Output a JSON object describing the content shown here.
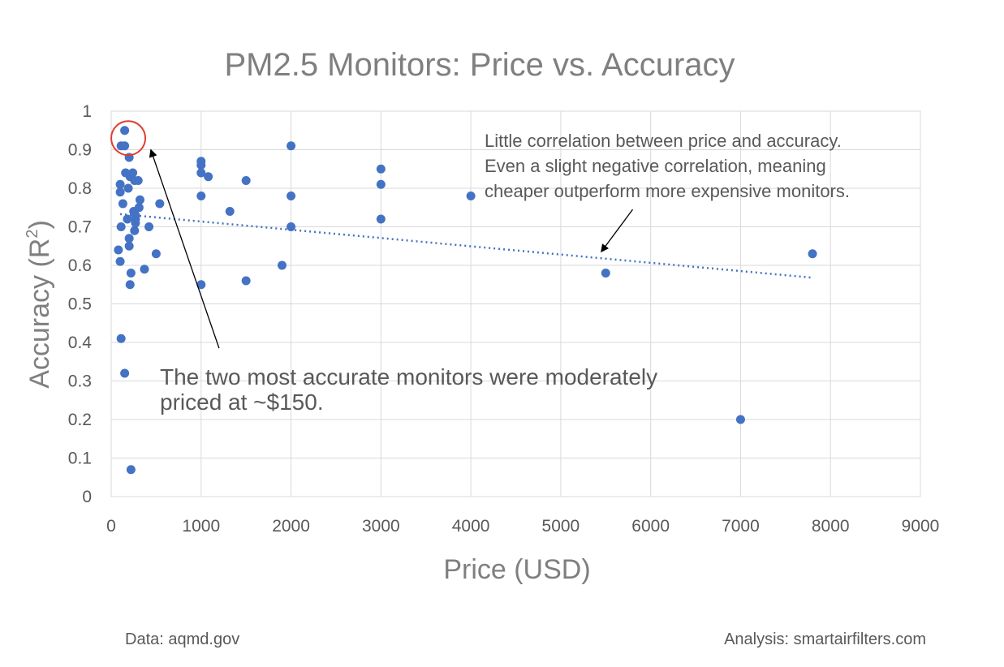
{
  "chart_data": {
    "type": "scatter",
    "title": "PM2.5 Monitors: Price vs. Accuracy",
    "xlabel": "Price (USD)",
    "ylabel_main": "Accuracy (R",
    "ylabel_sup": "2",
    "ylabel_close": ")",
    "xlim": [
      0,
      9000
    ],
    "ylim": [
      0,
      1
    ],
    "xticks": [
      "0",
      "1000",
      "2000",
      "3000",
      "4000",
      "5000",
      "6000",
      "7000",
      "8000",
      "9000"
    ],
    "yticks": [
      "0",
      "0.1",
      "0.2",
      "0.3",
      "0.4",
      "0.5",
      "0.6",
      "0.7",
      "0.8",
      "0.9",
      "1"
    ],
    "grid": true,
    "marker_color": "#4472c4",
    "highlight_color": "#e03c31",
    "points": [
      {
        "x": 150,
        "y": 0.95
      },
      {
        "x": 110,
        "y": 0.91
      },
      {
        "x": 150,
        "y": 0.91
      },
      {
        "x": 200,
        "y": 0.88
      },
      {
        "x": 100,
        "y": 0.81
      },
      {
        "x": 100,
        "y": 0.79
      },
      {
        "x": 160,
        "y": 0.84
      },
      {
        "x": 210,
        "y": 0.83
      },
      {
        "x": 240,
        "y": 0.84
      },
      {
        "x": 260,
        "y": 0.82
      },
      {
        "x": 300,
        "y": 0.82
      },
      {
        "x": 190,
        "y": 0.8
      },
      {
        "x": 320,
        "y": 0.77
      },
      {
        "x": 130,
        "y": 0.76
      },
      {
        "x": 250,
        "y": 0.74
      },
      {
        "x": 310,
        "y": 0.75
      },
      {
        "x": 270,
        "y": 0.73
      },
      {
        "x": 270,
        "y": 0.72
      },
      {
        "x": 270,
        "y": 0.71
      },
      {
        "x": 180,
        "y": 0.72
      },
      {
        "x": 110,
        "y": 0.7
      },
      {
        "x": 420,
        "y": 0.7
      },
      {
        "x": 260,
        "y": 0.69
      },
      {
        "x": 200,
        "y": 0.67
      },
      {
        "x": 200,
        "y": 0.65
      },
      {
        "x": 80,
        "y": 0.64
      },
      {
        "x": 500,
        "y": 0.63
      },
      {
        "x": 100,
        "y": 0.61
      },
      {
        "x": 370,
        "y": 0.59
      },
      {
        "x": 220,
        "y": 0.58
      },
      {
        "x": 210,
        "y": 0.55
      },
      {
        "x": 110,
        "y": 0.41
      },
      {
        "x": 150,
        "y": 0.32
      },
      {
        "x": 220,
        "y": 0.07
      },
      {
        "x": 540,
        "y": 0.76
      },
      {
        "x": 1000,
        "y": 0.87
      },
      {
        "x": 1000,
        "y": 0.86
      },
      {
        "x": 1000,
        "y": 0.84
      },
      {
        "x": 1080,
        "y": 0.83
      },
      {
        "x": 1000,
        "y": 0.78
      },
      {
        "x": 1000,
        "y": 0.55
      },
      {
        "x": 1320,
        "y": 0.74
      },
      {
        "x": 1500,
        "y": 0.82
      },
      {
        "x": 1500,
        "y": 0.56
      },
      {
        "x": 1900,
        "y": 0.6
      },
      {
        "x": 2000,
        "y": 0.91
      },
      {
        "x": 2000,
        "y": 0.78
      },
      {
        "x": 2000,
        "y": 0.7
      },
      {
        "x": 3000,
        "y": 0.85
      },
      {
        "x": 3000,
        "y": 0.81
      },
      {
        "x": 3000,
        "y": 0.72
      },
      {
        "x": 4000,
        "y": 0.78
      },
      {
        "x": 5500,
        "y": 0.58
      },
      {
        "x": 7000,
        "y": 0.2
      },
      {
        "x": 7800,
        "y": 0.63
      }
    ],
    "trendline": {
      "x0": 100,
      "y0": 0.733,
      "x1": 7800,
      "y1": 0.568,
      "color": "#4472c4"
    },
    "highlight": {
      "x": 190,
      "y": 0.93
    },
    "annotations": [
      {
        "lines": [
          "Little correlation between price and accuracy.",
          "Even a slight negative correlation, meaning",
          "cheaper outperform more expensive monitors."
        ],
        "arrow_from": {
          "x": 5800,
          "y": 0.745
        },
        "arrow_to": {
          "x": 5450,
          "y": 0.635
        }
      },
      {
        "lines": [
          "The two most accurate monitors were moderately",
          "priced at ~$150."
        ],
        "arrow_from": {
          "x": 1200,
          "y": 0.385
        },
        "arrow_to": {
          "x": 440,
          "y": 0.9
        }
      }
    ]
  },
  "footer": {
    "source": "Data: aqmd.gov",
    "analysis": "Analysis: smartairfilters.com"
  }
}
